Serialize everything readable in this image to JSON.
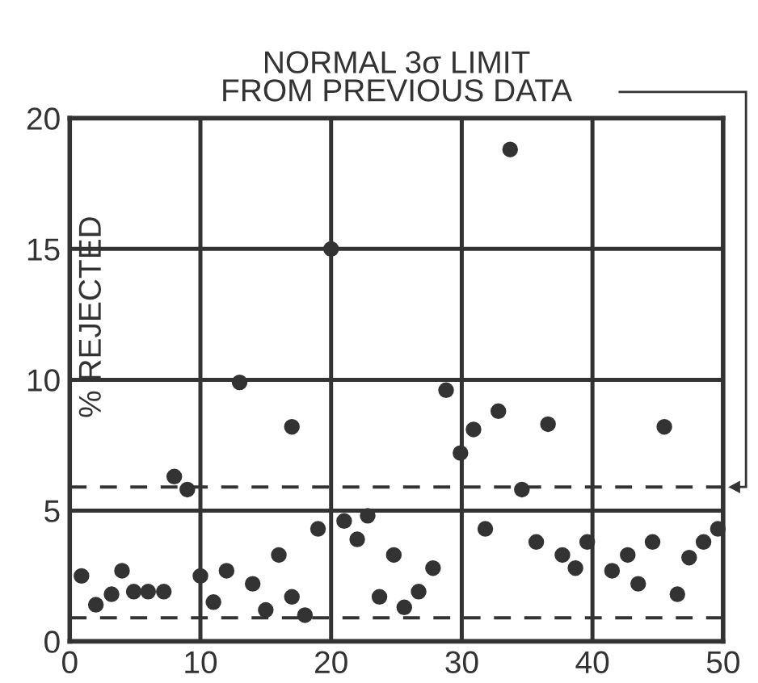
{
  "chart_data": {
    "type": "scatter",
    "title": "NORMAL 3σ LIMIT\nFROM PREVIOUS DATA",
    "ylabel": "% REJECTED",
    "x": [
      0.9,
      2,
      3.2,
      4,
      4.9,
      6,
      7.2,
      8,
      9,
      10,
      11,
      12,
      13,
      14,
      15,
      16,
      17,
      17,
      18,
      19,
      20,
      21,
      22,
      22.8,
      23.7,
      24.8,
      25.6,
      26.7,
      27.8,
      28.8,
      29.9,
      30.9,
      31.8,
      32.8,
      33.7,
      34.6,
      35.7,
      36.6,
      37.7,
      38.7,
      39.6,
      41.5,
      42.7,
      43.5,
      44.6,
      45.5,
      46.5,
      47.4,
      48.5,
      49.6
    ],
    "series": [
      {
        "color": "#333333",
        "values": [
          2.5,
          1.4,
          1.8,
          2.7,
          1.9,
          1.9,
          1.9,
          6.3,
          5.8,
          2.5,
          1.5,
          2.7,
          9.9,
          2.2,
          1.2,
          3.3,
          8.2,
          1.7,
          1.0,
          4.3,
          15.0,
          4.6,
          3.9,
          4.8,
          1.7,
          3.3,
          1.3,
          1.9,
          2.8,
          9.6,
          7.2,
          8.1,
          4.3,
          8.8,
          18.8,
          5.8,
          3.8,
          8.3,
          3.3,
          2.8,
          3.8,
          2.7,
          3.3,
          2.2,
          3.8,
          8.2,
          1.8,
          3.2,
          3.8,
          4.3
        ]
      }
    ],
    "marker": "circle",
    "xlim": [
      0,
      50
    ],
    "ylim": [
      0,
      20
    ],
    "xticks": [
      0,
      10,
      20,
      30,
      40,
      50
    ],
    "yticks": [
      0,
      5,
      10,
      15,
      20
    ],
    "grid": true,
    "ref_lines": [
      {
        "axis": "y",
        "value": 5.9,
        "line_style": "dashed",
        "color": "#333333"
      },
      {
        "axis": "y",
        "value": 0.9,
        "line_style": "dashed",
        "color": "#333333"
      }
    ]
  }
}
